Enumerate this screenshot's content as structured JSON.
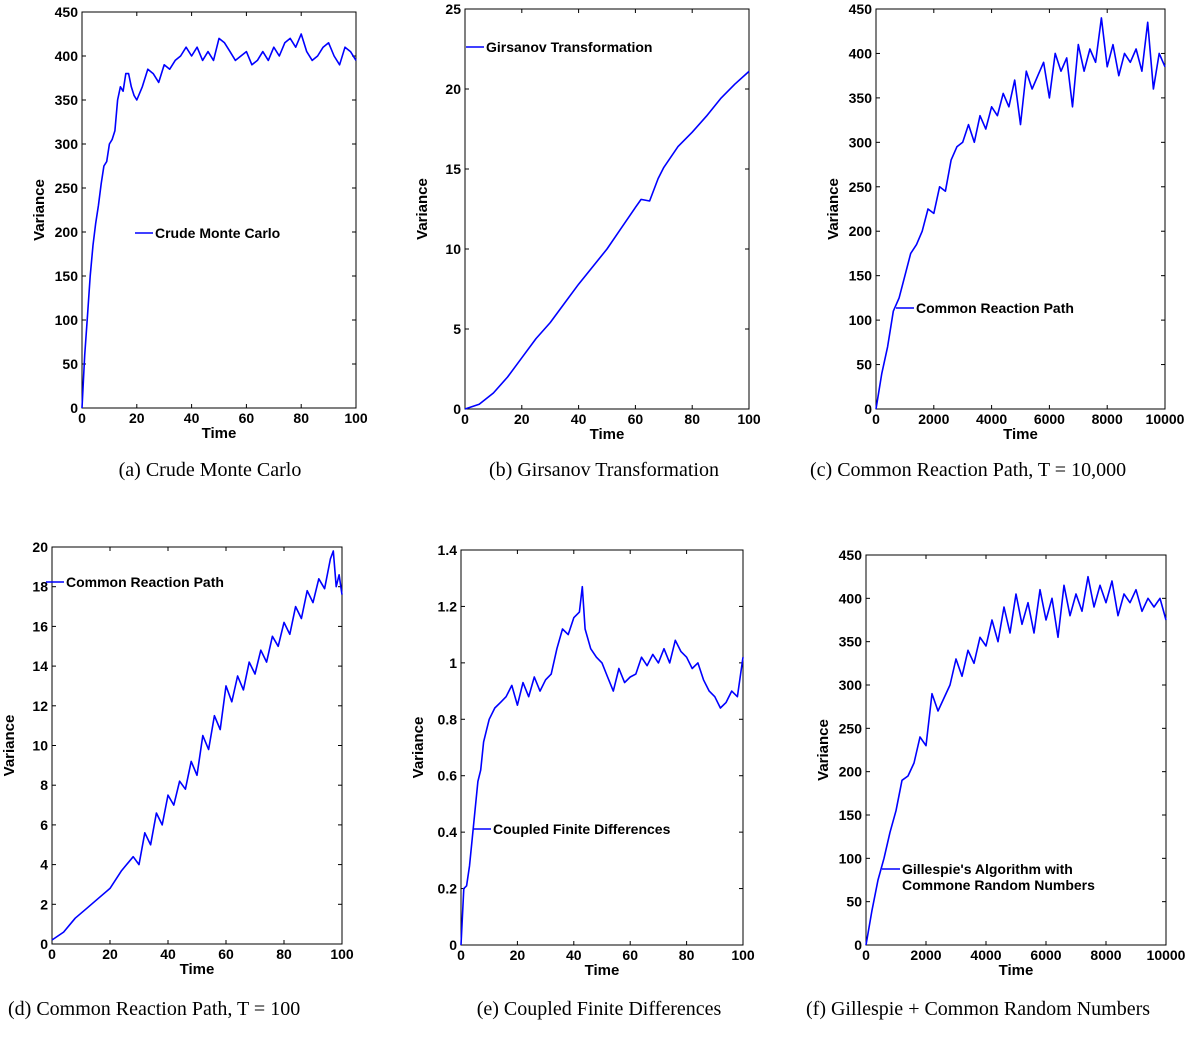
{
  "chart_data": [
    {
      "panel": "a",
      "type": "line",
      "caption": "(a) Crude Monte Carlo",
      "xlabel": "Time",
      "ylabel": "Variance",
      "xlim": [
        0,
        100
      ],
      "ylim": [
        0,
        450
      ],
      "xticks": [
        "0",
        "20",
        "40",
        "60",
        "80",
        "100"
      ],
      "yticks": [
        "0",
        "50",
        "100",
        "150",
        "200",
        "250",
        "300",
        "350",
        "400",
        "450"
      ],
      "legend": "top-right",
      "series": [
        {
          "name": "Crude Monte Carlo",
          "color": "#0000ff",
          "x": [
            0,
            1,
            2,
            3,
            4,
            5,
            6,
            7,
            8,
            9,
            10,
            11,
            12,
            13,
            14,
            15,
            16,
            17,
            18,
            19,
            20,
            22,
            24,
            26,
            28,
            30,
            32,
            34,
            36,
            38,
            40,
            42,
            44,
            46,
            48,
            50,
            52,
            54,
            56,
            58,
            60,
            62,
            64,
            66,
            68,
            70,
            72,
            74,
            76,
            78,
            80,
            82,
            84,
            86,
            88,
            90,
            92,
            94,
            96,
            98,
            100
          ],
          "y": [
            0,
            60,
            105,
            150,
            185,
            210,
            230,
            255,
            275,
            280,
            300,
            305,
            315,
            350,
            365,
            360,
            380,
            380,
            365,
            355,
            350,
            365,
            385,
            380,
            370,
            390,
            385,
            395,
            400,
            410,
            400,
            410,
            395,
            405,
            395,
            420,
            415,
            405,
            395,
            400,
            405,
            390,
            395,
            405,
            395,
            410,
            400,
            415,
            420,
            410,
            425,
            405,
            395,
            400,
            410,
            415,
            400,
            390,
            410,
            405,
            395
          ]
        }
      ]
    },
    {
      "panel": "b",
      "type": "line",
      "caption": "(b) Girsanov Transformation",
      "xlabel": "Time",
      "ylabel": "Variance",
      "xlim": [
        0,
        100
      ],
      "ylim": [
        0,
        25
      ],
      "xticks": [
        "0",
        "20",
        "40",
        "60",
        "80",
        "100"
      ],
      "yticks": [
        "0",
        "5",
        "10",
        "15",
        "20",
        "25"
      ],
      "legend": "top-left",
      "series": [
        {
          "name": "Girsanov Transformation",
          "color": "#0000ff",
          "x": [
            0,
            5,
            10,
            15,
            20,
            25,
            30,
            35,
            40,
            45,
            50,
            55,
            60,
            62,
            65,
            68,
            70,
            75,
            80,
            85,
            90,
            95,
            100
          ],
          "y": [
            0,
            0.3,
            1.0,
            2.0,
            3.2,
            4.4,
            5.4,
            6.6,
            7.8,
            8.9,
            10.0,
            11.3,
            12.6,
            13.1,
            13.0,
            14.4,
            15.1,
            16.4,
            17.3,
            18.3,
            19.4,
            20.3,
            21.1
          ]
        }
      ]
    },
    {
      "panel": "c",
      "type": "line",
      "caption": "(c) Common Reaction Path, T = 10,000",
      "xlabel": "Time",
      "ylabel": "Variance",
      "xlim": [
        0,
        10000
      ],
      "ylim": [
        0,
        450
      ],
      "xticks": [
        "0",
        "2000",
        "4000",
        "6000",
        "8000",
        "10000"
      ],
      "yticks": [
        "0",
        "50",
        "100",
        "150",
        "200",
        "250",
        "300",
        "350",
        "400",
        "450"
      ],
      "legend": "center-right",
      "series": [
        {
          "name": "Common Reaction Path",
          "color": "#0000ff",
          "x": [
            0,
            200,
            400,
            600,
            800,
            1000,
            1200,
            1400,
            1600,
            1800,
            2000,
            2200,
            2400,
            2600,
            2800,
            3000,
            3200,
            3400,
            3600,
            3800,
            4000,
            4200,
            4400,
            4600,
            4800,
            5000,
            5200,
            5400,
            5600,
            5800,
            6000,
            6200,
            6400,
            6600,
            6800,
            7000,
            7200,
            7400,
            7600,
            7800,
            8000,
            8200,
            8400,
            8600,
            8800,
            9000,
            9200,
            9400,
            9600,
            9800,
            10000
          ],
          "y": [
            0,
            40,
            70,
            110,
            125,
            150,
            175,
            185,
            200,
            225,
            220,
            250,
            245,
            280,
            295,
            300,
            320,
            300,
            330,
            315,
            340,
            330,
            355,
            340,
            370,
            320,
            380,
            360,
            375,
            390,
            350,
            400,
            380,
            395,
            340,
            410,
            380,
            405,
            390,
            440,
            385,
            410,
            375,
            400,
            390,
            405,
            380,
            435,
            360,
            400,
            385
          ]
        }
      ]
    },
    {
      "panel": "d",
      "type": "line",
      "caption": "(d) Common Reaction Path, T = 100",
      "xlabel": "Time",
      "ylabel": "Variance",
      "xlim": [
        0,
        100
      ],
      "ylim": [
        0,
        20
      ],
      "xticks": [
        "0",
        "20",
        "40",
        "60",
        "80",
        "100"
      ],
      "yticks": [
        "0",
        "2",
        "4",
        "6",
        "8",
        "10",
        "12",
        "14",
        "16",
        "18",
        "20"
      ],
      "legend": "top-left",
      "series": [
        {
          "name": "Common Reaction Path",
          "color": "#0000ff",
          "x": [
            0,
            4,
            8,
            12,
            16,
            20,
            24,
            28,
            30,
            32,
            34,
            36,
            38,
            40,
            42,
            44,
            46,
            48,
            50,
            52,
            54,
            56,
            58,
            60,
            62,
            64,
            66,
            68,
            70,
            72,
            74,
            76,
            78,
            80,
            82,
            84,
            86,
            88,
            90,
            92,
            94,
            96,
            97,
            98,
            99,
            100
          ],
          "y": [
            0.2,
            0.6,
            1.3,
            1.8,
            2.3,
            2.8,
            3.7,
            4.4,
            4.0,
            5.6,
            5.0,
            6.6,
            6.0,
            7.5,
            7.0,
            8.2,
            7.8,
            9.2,
            8.5,
            10.5,
            9.8,
            11.5,
            10.8,
            13.0,
            12.2,
            13.5,
            12.8,
            14.2,
            13.6,
            14.8,
            14.2,
            15.5,
            15.0,
            16.2,
            15.6,
            17.0,
            16.4,
            17.8,
            17.2,
            18.4,
            17.9,
            19.4,
            19.8,
            18.0,
            18.6,
            17.6
          ]
        }
      ]
    },
    {
      "panel": "e",
      "type": "line",
      "caption": "(e) Coupled Finite Differences",
      "xlabel": "Time",
      "ylabel": "Variance",
      "xlim": [
        0,
        100
      ],
      "ylim": [
        0,
        1.4
      ],
      "xticks": [
        "0",
        "20",
        "40",
        "60",
        "80",
        "100"
      ],
      "yticks": [
        "0",
        "0.2",
        "0.4",
        "0.6",
        "0.8",
        "1",
        "1.2",
        "1.4"
      ],
      "legend": "bottom-right",
      "series": [
        {
          "name": "Coupled Finite Differences",
          "color": "#0000ff",
          "x": [
            0,
            1,
            2,
            3,
            4,
            5,
            6,
            7,
            8,
            9,
            10,
            12,
            14,
            16,
            18,
            20,
            22,
            24,
            26,
            28,
            30,
            32,
            34,
            36,
            38,
            40,
            42,
            43,
            44,
            46,
            48,
            50,
            52,
            54,
            56,
            58,
            60,
            62,
            64,
            66,
            68,
            70,
            72,
            74,
            76,
            78,
            80,
            82,
            84,
            86,
            88,
            90,
            92,
            94,
            96,
            98,
            100
          ],
          "y": [
            0,
            0.2,
            0.21,
            0.28,
            0.38,
            0.48,
            0.58,
            0.62,
            0.72,
            0.76,
            0.8,
            0.84,
            0.86,
            0.88,
            0.92,
            0.85,
            0.93,
            0.88,
            0.95,
            0.9,
            0.94,
            0.96,
            1.05,
            1.12,
            1.1,
            1.16,
            1.18,
            1.27,
            1.12,
            1.05,
            1.02,
            1.0,
            0.95,
            0.9,
            0.98,
            0.93,
            0.95,
            0.96,
            1.02,
            0.99,
            1.03,
            1.0,
            1.05,
            1.0,
            1.08,
            1.04,
            1.02,
            0.98,
            1.0,
            0.94,
            0.9,
            0.88,
            0.84,
            0.86,
            0.9,
            0.88,
            1.02
          ]
        }
      ]
    },
    {
      "panel": "f",
      "type": "line",
      "caption": "(f) Gillespie + Common Random Numbers",
      "xlabel": "Time",
      "ylabel": "Variance",
      "xlim": [
        0,
        10000
      ],
      "ylim": [
        0,
        450
      ],
      "xticks": [
        "0",
        "2000",
        "4000",
        "6000",
        "8000",
        "10000"
      ],
      "yticks": [
        "0",
        "50",
        "100",
        "150",
        "200",
        "250",
        "300",
        "350",
        "400",
        "450"
      ],
      "legend": "bottom-right",
      "series": [
        {
          "name": "Gillespie's Algorithm with\nCommone Random Numbers",
          "color": "#0000ff",
          "x": [
            0,
            200,
            400,
            600,
            800,
            1000,
            1200,
            1400,
            1600,
            1800,
            2000,
            2200,
            2400,
            2600,
            2800,
            3000,
            3200,
            3400,
            3600,
            3800,
            4000,
            4200,
            4400,
            4600,
            4800,
            5000,
            5200,
            5400,
            5600,
            5800,
            6000,
            6200,
            6400,
            6600,
            6800,
            7000,
            7200,
            7400,
            7600,
            7800,
            8000,
            8200,
            8400,
            8600,
            8800,
            9000,
            9200,
            9400,
            9600,
            9800,
            10000
          ],
          "y": [
            0,
            40,
            75,
            100,
            130,
            155,
            190,
            195,
            210,
            240,
            230,
            290,
            270,
            285,
            300,
            330,
            310,
            340,
            325,
            355,
            345,
            375,
            350,
            390,
            360,
            405,
            370,
            395,
            360,
            410,
            375,
            400,
            355,
            415,
            380,
            405,
            385,
            425,
            390,
            415,
            395,
            420,
            380,
            405,
            395,
            410,
            385,
            400,
            390,
            400,
            375
          ]
        }
      ]
    }
  ]
}
